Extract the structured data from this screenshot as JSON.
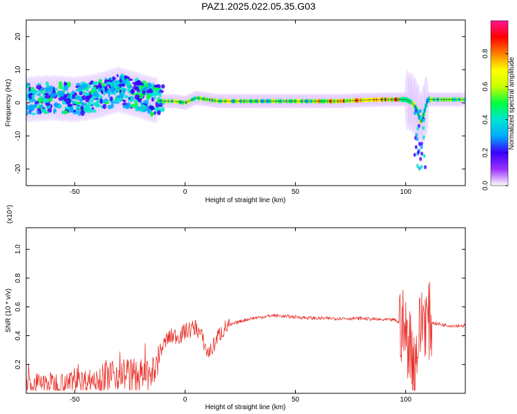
{
  "title": "PAZ1.2025.022.05.35.G03",
  "chart_data": [
    {
      "type": "heatmap",
      "xlabel": "Height of straight line (km)",
      "ylabel": "Frequency (Hz)",
      "xlim": [
        -72,
        127
      ],
      "ylim": [
        -25,
        25
      ],
      "xticks": [
        -50,
        0,
        50,
        100
      ],
      "xtick_labels": [
        "-50",
        "0",
        "50",
        "100"
      ],
      "yticks": [
        -20,
        -10,
        0,
        10,
        20
      ],
      "ytick_labels": [
        "-20",
        "-10",
        "0",
        "10",
        "20"
      ],
      "colorbar": {
        "label": "Normalized spectral amplitude",
        "range": [
          0,
          1
        ],
        "ticks": [
          0.0,
          0.2,
          0.4,
          0.6,
          0.8
        ],
        "tick_labels": [
          "0.0",
          "0.2",
          "0.4",
          "0.6",
          "0.8"
        ],
        "colormap": [
          "#ffffff",
          "#9b30ff",
          "#3a00ff",
          "#00aaff",
          "#00e5d0",
          "#00ff40",
          "#c8ff00",
          "#ffff00",
          "#ff8000",
          "#ff0000",
          "#ff1493"
        ]
      },
      "ridge": {
        "x": [
          -72,
          -60,
          -50,
          -40,
          -35,
          -30,
          -25,
          -20,
          -15,
          -10,
          -5,
          0,
          5,
          10,
          15,
          20,
          30,
          40,
          50,
          60,
          70,
          80,
          90,
          95,
          100,
          103,
          105,
          107,
          110,
          115,
          120,
          127
        ],
        "y": [
          1,
          1.5,
          1,
          2,
          3,
          4,
          3,
          2,
          1,
          0.5,
          0.5,
          0,
          1.5,
          1,
          0.5,
          0.5,
          0.5,
          0.5,
          0.5,
          0.5,
          0.5,
          0.8,
          1,
          1,
          1,
          0,
          -2,
          -6,
          1,
          1,
          1,
          1
        ]
      }
    },
    {
      "type": "line",
      "xlabel": "Height of straight line (km)",
      "ylabel": "SNR (10 * v/v)",
      "y_multiplier_label": "(x10⁴)",
      "xlim": [
        -72,
        127
      ],
      "ylim": [
        0,
        1.15
      ],
      "xticks": [
        -50,
        0,
        50,
        100
      ],
      "xtick_labels": [
        "-50",
        "0",
        "50",
        "100"
      ],
      "yticks": [
        0.2,
        0.4,
        0.6,
        0.8,
        1.0
      ],
      "ytick_labels": [
        "0.2",
        "0.4",
        "0.6",
        "0.8",
        "1.0"
      ],
      "color": "#e8302a",
      "series": [
        {
          "x": [
            -72,
            -60,
            -50,
            -40,
            -35,
            -30,
            -25,
            -20,
            -15,
            -13,
            -11,
            -8,
            -5,
            -2,
            0,
            2,
            5,
            8,
            10,
            12,
            15,
            18,
            20,
            25,
            30,
            35,
            40,
            50,
            60,
            70,
            80,
            90,
            95,
            98,
            100,
            102,
            104,
            106,
            108,
            110,
            115,
            120,
            127
          ],
          "y": [
            0.06,
            0.07,
            0.08,
            0.1,
            0.12,
            0.14,
            0.13,
            0.12,
            0.11,
            0.2,
            0.3,
            0.38,
            0.4,
            0.4,
            0.43,
            0.44,
            0.46,
            0.38,
            0.28,
            0.3,
            0.4,
            0.45,
            0.47,
            0.5,
            0.52,
            0.53,
            0.54,
            0.53,
            0.52,
            0.52,
            0.52,
            0.51,
            0.51,
            0.48,
            0.4,
            0.35,
            0.2,
            0.4,
            0.55,
            0.5,
            0.48,
            0.47,
            0.47
          ]
        }
      ]
    }
  ]
}
